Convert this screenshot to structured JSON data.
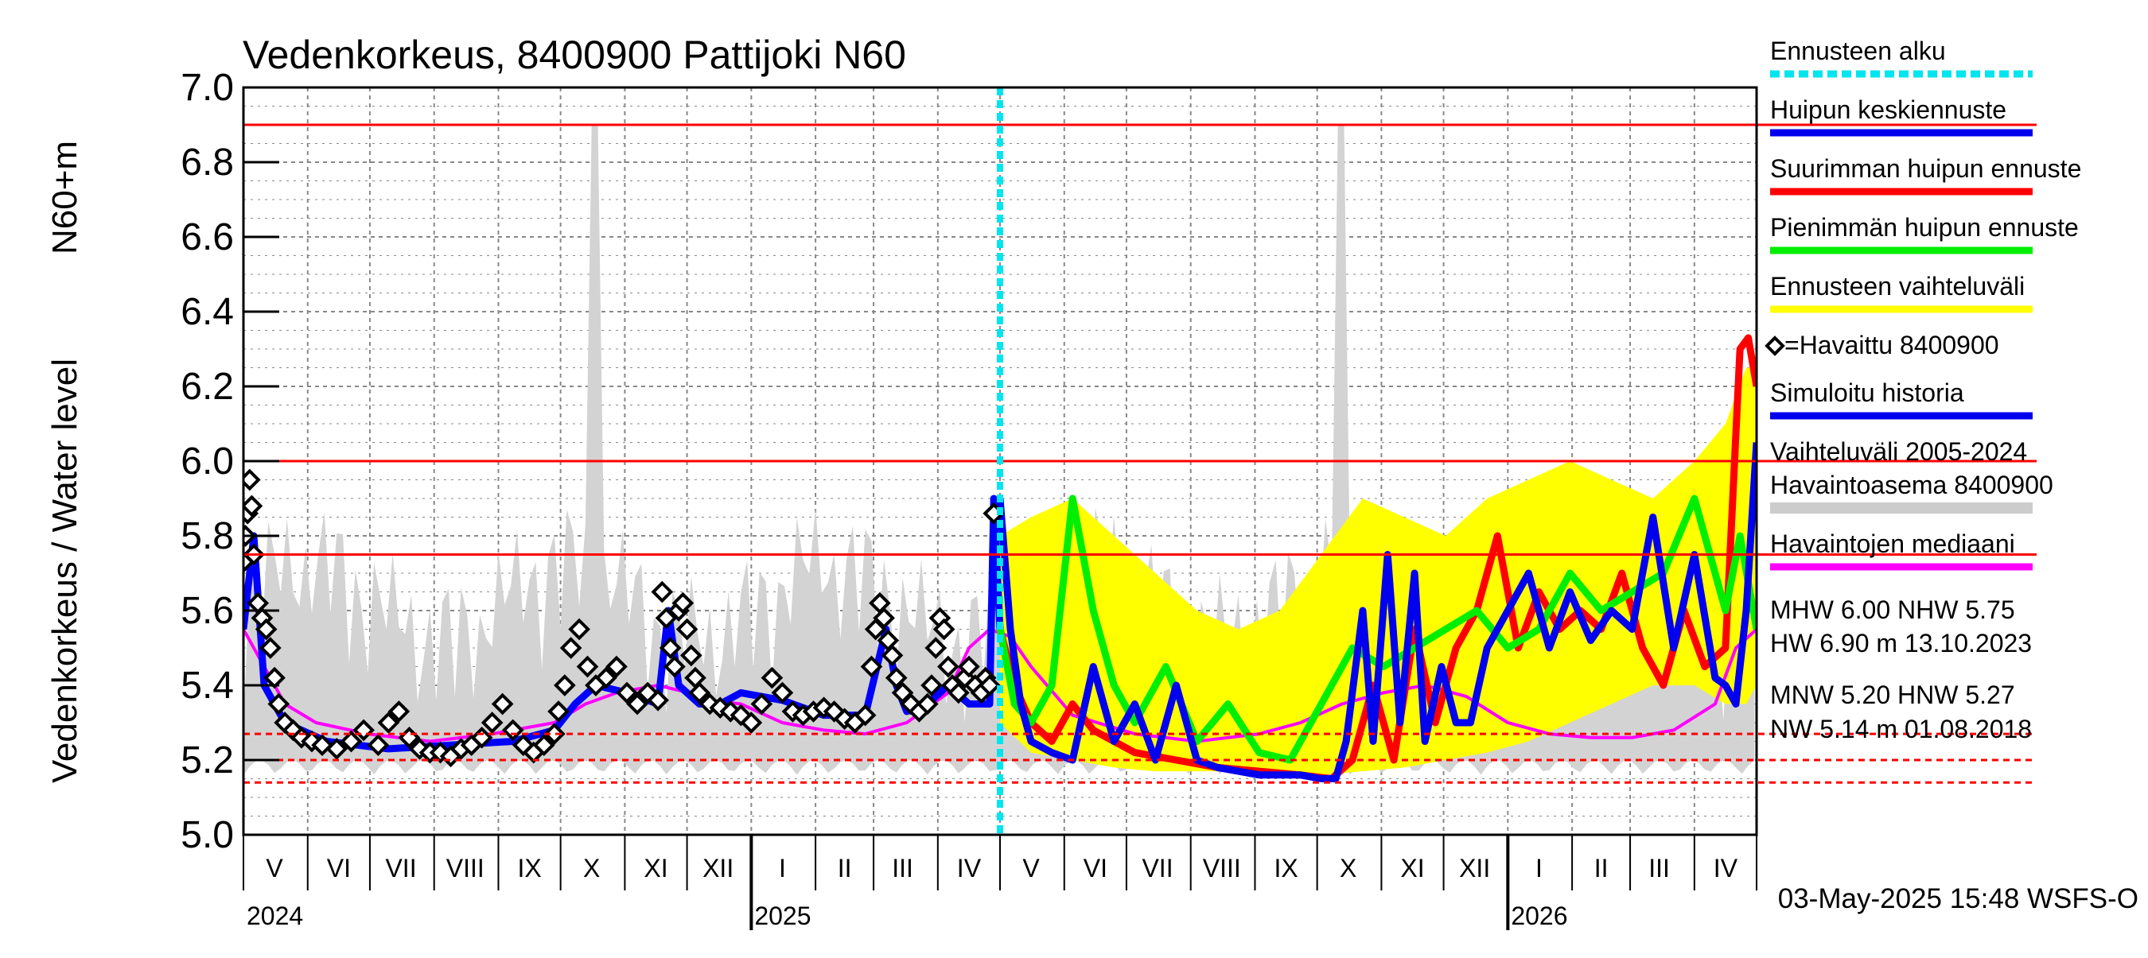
{
  "chart_data": {
    "type": "line",
    "title": "Vedenkorkeus, 8400900 Pattijoki N60",
    "ylabel": "Vedenkorkeus / Water level",
    "ylabel_unit": "N60+m",
    "ylim": [
      5.0,
      7.0
    ],
    "y_ticks": [
      "5.0",
      "5.2",
      "5.4",
      "5.6",
      "5.8",
      "6.0",
      "6.2",
      "6.4",
      "6.6",
      "6.8",
      "7.0"
    ],
    "x_range_days": [
      0,
      730
    ],
    "forecast_start_day": 365,
    "month_labels": [
      {
        "label": "V",
        "day": 15
      },
      {
        "label": "VI",
        "day": 46
      },
      {
        "label": "VII",
        "day": 76
      },
      {
        "label": "VIII",
        "day": 107
      },
      {
        "label": "IX",
        "day": 138
      },
      {
        "label": "X",
        "day": 168
      },
      {
        "label": "XI",
        "day": 199
      },
      {
        "label": "XII",
        "day": 229
      },
      {
        "label": "I",
        "day": 260
      },
      {
        "label": "II",
        "day": 290
      },
      {
        "label": "III",
        "day": 318
      },
      {
        "label": "IV",
        "day": 350
      },
      {
        "label": "V",
        "day": 380
      },
      {
        "label": "VI",
        "day": 411
      },
      {
        "label": "VII",
        "day": 441
      },
      {
        "label": "VIII",
        "day": 472
      },
      {
        "label": "IX",
        "day": 503
      },
      {
        "label": "X",
        "day": 533
      },
      {
        "label": "XI",
        "day": 564
      },
      {
        "label": "XII",
        "day": 594
      },
      {
        "label": "I",
        "day": 625
      },
      {
        "label": "II",
        "day": 655
      },
      {
        "label": "III",
        "day": 683
      },
      {
        "label": "IV",
        "day": 715
      }
    ],
    "month_boundaries": [
      0,
      31,
      61,
      92,
      123,
      153,
      184,
      214,
      245,
      276,
      304,
      335,
      365,
      396,
      426,
      457,
      488,
      518,
      549,
      579,
      610,
      641,
      669,
      700,
      730
    ],
    "year_boundaries": [
      245,
      610
    ],
    "year_labels": [
      {
        "label": "2024",
        "day": 0
      },
      {
        "label": "2025",
        "day": 245
      },
      {
        "label": "2026",
        "day": 610
      }
    ],
    "reference_lines": [
      {
        "name": "HW",
        "value": 6.9,
        "color": "#ff0000",
        "style": "solid"
      },
      {
        "name": "MHW",
        "value": 6.0,
        "color": "#ff0000",
        "style": "solid"
      },
      {
        "name": "NHW",
        "value": 5.75,
        "color": "#ff0000",
        "style": "solid"
      },
      {
        "name": "HNW",
        "value": 5.27,
        "color": "#ff0000",
        "style": "dashed"
      },
      {
        "name": "MNW",
        "value": 5.2,
        "color": "#ff0000",
        "style": "dashed"
      },
      {
        "name": "NW",
        "value": 5.14,
        "color": "#ff0000",
        "style": "dashed"
      }
    ],
    "series": [
      {
        "name": "Havaintojen mediaani",
        "color": "#ff00ff",
        "x": [
          0,
          10,
          20,
          35,
          60,
          90,
          120,
          150,
          165,
          180,
          200,
          215,
          225,
          240,
          260,
          280,
          300,
          320,
          340,
          350,
          360,
          370,
          380,
          400,
          430,
          460,
          490,
          510,
          530,
          550,
          570,
          590,
          610,
          630,
          650,
          670,
          690,
          710,
          720,
          730
        ],
        "values": [
          5.55,
          5.45,
          5.35,
          5.3,
          5.27,
          5.25,
          5.27,
          5.3,
          5.35,
          5.38,
          5.4,
          5.38,
          5.36,
          5.35,
          5.3,
          5.28,
          5.27,
          5.3,
          5.38,
          5.5,
          5.55,
          5.53,
          5.45,
          5.32,
          5.27,
          5.25,
          5.27,
          5.3,
          5.35,
          5.38,
          5.4,
          5.37,
          5.3,
          5.27,
          5.26,
          5.26,
          5.28,
          5.35,
          5.5,
          5.55
        ]
      },
      {
        "name": "Simuloitu historia",
        "color": "#0000ff",
        "x": [
          0,
          5,
          10,
          20,
          40,
          70,
          100,
          130,
          150,
          160,
          170,
          185,
          200,
          205,
          210,
          220,
          230,
          240,
          260,
          280,
          300,
          310,
          315,
          320,
          330,
          340,
          350,
          360,
          362,
          365
        ],
        "values": [
          5.55,
          5.8,
          5.4,
          5.3,
          5.25,
          5.23,
          5.24,
          5.25,
          5.28,
          5.35,
          5.4,
          5.38,
          5.35,
          5.6,
          5.4,
          5.35,
          5.35,
          5.38,
          5.36,
          5.32,
          5.32,
          5.55,
          5.4,
          5.33,
          5.35,
          5.4,
          5.35,
          5.35,
          5.9,
          5.55
        ]
      },
      {
        "name": "Ennusteen vaihteluväli",
        "color": "#ffff00",
        "x": [
          365,
          380,
          400,
          420,
          440,
          460,
          480,
          500,
          520,
          540,
          560,
          580,
          600,
          620,
          640,
          660,
          680,
          700,
          715,
          725,
          730
        ],
        "upper": [
          5.8,
          5.85,
          5.9,
          5.8,
          5.7,
          5.6,
          5.55,
          5.6,
          5.75,
          5.9,
          5.85,
          5.8,
          5.9,
          5.95,
          6.0,
          5.95,
          5.9,
          6.0,
          6.1,
          6.25,
          6.25
        ],
        "lower": [
          5.3,
          5.22,
          5.2,
          5.18,
          5.17,
          5.17,
          5.17,
          5.16,
          5.16,
          5.17,
          5.18,
          5.2,
          5.22,
          5.25,
          5.3,
          5.35,
          5.4,
          5.4,
          5.35,
          5.35,
          5.4
        ]
      },
      {
        "name": "Suurimman huipun ennuste",
        "color": "#ff0000",
        "x": [
          365,
          372,
          380,
          390,
          400,
          410,
          420,
          430,
          450,
          470,
          490,
          510,
          525,
          535,
          545,
          555,
          565,
          575,
          585,
          595,
          605,
          615,
          625,
          635,
          645,
          655,
          665,
          675,
          685,
          695,
          705,
          715,
          722,
          726,
          730
        ],
        "values": [
          5.55,
          5.4,
          5.3,
          5.25,
          5.35,
          5.28,
          5.25,
          5.22,
          5.2,
          5.18,
          5.17,
          5.16,
          5.15,
          5.2,
          5.4,
          5.2,
          5.55,
          5.3,
          5.5,
          5.6,
          5.8,
          5.5,
          5.65,
          5.55,
          5.6,
          5.55,
          5.7,
          5.5,
          5.4,
          5.6,
          5.45,
          5.5,
          6.3,
          6.33,
          6.2
        ]
      },
      {
        "name": "Pienimmän huipun ennuste",
        "color": "#00ee00",
        "x": [
          365,
          372,
          380,
          390,
          400,
          410,
          420,
          430,
          445,
          460,
          475,
          490,
          505,
          520,
          535,
          550,
          565,
          580,
          595,
          610,
          625,
          640,
          655,
          670,
          685,
          700,
          715,
          722,
          730
        ],
        "values": [
          5.55,
          5.35,
          5.3,
          5.4,
          5.9,
          5.6,
          5.4,
          5.3,
          5.45,
          5.25,
          5.35,
          5.22,
          5.2,
          5.35,
          5.5,
          5.45,
          5.5,
          5.55,
          5.6,
          5.5,
          5.55,
          5.7,
          5.6,
          5.65,
          5.7,
          5.9,
          5.6,
          5.8,
          5.55
        ]
      },
      {
        "name": "Huipun keskiennuste",
        "color": "#0000ee",
        "x": [
          365,
          370,
          375,
          380,
          390,
          400,
          410,
          420,
          430,
          440,
          450,
          460,
          470,
          480,
          490,
          500,
          510,
          520,
          527,
          532,
          540,
          545,
          552,
          558,
          565,
          570,
          578,
          585,
          592,
          600,
          610,
          620,
          630,
          640,
          650,
          660,
          670,
          680,
          690,
          700,
          710,
          715,
          720,
          725,
          730
        ],
        "values": [
          5.9,
          5.55,
          5.35,
          5.25,
          5.22,
          5.2,
          5.45,
          5.25,
          5.35,
          5.2,
          5.4,
          5.2,
          5.18,
          5.17,
          5.16,
          5.16,
          5.16,
          5.15,
          5.15,
          5.25,
          5.6,
          5.25,
          5.75,
          5.3,
          5.7,
          5.25,
          5.45,
          5.3,
          5.3,
          5.5,
          5.6,
          5.7,
          5.5,
          5.65,
          5.52,
          5.6,
          5.55,
          5.85,
          5.5,
          5.75,
          5.42,
          5.4,
          5.35,
          5.6,
          6.05
        ]
      }
    ],
    "observed": {
      "name": "Havaittu 8400900",
      "x": [
        0,
        1,
        2,
        3,
        4,
        5,
        7,
        9,
        11,
        13,
        15,
        17,
        20,
        24,
        28,
        33,
        38,
        45,
        52,
        58,
        65,
        70,
        75,
        80,
        85,
        90,
        95,
        100,
        105,
        110,
        115,
        120,
        125,
        130,
        135,
        140,
        145,
        150,
        152,
        155,
        158,
        162,
        166,
        170,
        175,
        180,
        185,
        190,
        195,
        200,
        202,
        204,
        206,
        208,
        210,
        212,
        214,
        216,
        218,
        220,
        225,
        230,
        235,
        240,
        245,
        250,
        255,
        260,
        265,
        270,
        275,
        280,
        285,
        290,
        295,
        300,
        303,
        305,
        307,
        309,
        311,
        313,
        315,
        318,
        322,
        326,
        330,
        332,
        334,
        336,
        338,
        340,
        342,
        345,
        348,
        350,
        353,
        356,
        358,
        360,
        362
      ],
      "values": [
        5.73,
        5.8,
        5.86,
        5.95,
        5.88,
        5.75,
        5.62,
        5.58,
        5.55,
        5.5,
        5.42,
        5.35,
        5.3,
        5.28,
        5.26,
        5.25,
        5.24,
        5.23,
        5.25,
        5.28,
        5.24,
        5.3,
        5.33,
        5.26,
        5.23,
        5.22,
        5.22,
        5.21,
        5.23,
        5.24,
        5.26,
        5.3,
        5.35,
        5.28,
        5.24,
        5.22,
        5.24,
        5.27,
        5.33,
        5.4,
        5.5,
        5.55,
        5.45,
        5.4,
        5.42,
        5.45,
        5.38,
        5.35,
        5.38,
        5.36,
        5.65,
        5.58,
        5.5,
        5.45,
        5.6,
        5.62,
        5.55,
        5.48,
        5.42,
        5.38,
        5.35,
        5.34,
        5.33,
        5.32,
        5.3,
        5.35,
        5.42,
        5.38,
        5.33,
        5.32,
        5.33,
        5.34,
        5.33,
        5.31,
        5.3,
        5.32,
        5.45,
        5.55,
        5.62,
        5.58,
        5.52,
        5.48,
        5.42,
        5.38,
        5.35,
        5.33,
        5.35,
        5.4,
        5.5,
        5.58,
        5.55,
        5.45,
        5.4,
        5.38,
        5.42,
        5.45,
        5.4,
        5.38,
        5.42,
        5.4,
        5.86
      ]
    },
    "legend": [
      {
        "label": "Ennusteen alku",
        "color": "#00e5ee",
        "style": "dashed"
      },
      {
        "label": "Huipun keskiennuste",
        "color": "#0000ee",
        "style": "solid"
      },
      {
        "label": "Suurimman huipun ennuste",
        "color": "#ff0000",
        "style": "solid"
      },
      {
        "label": "Pienimmän huipun ennuste",
        "color": "#00ee00",
        "style": "solid"
      },
      {
        "label": "Ennusteen vaihteluväli",
        "color": "#ffff00",
        "style": "solid"
      },
      {
        "label": "=Havaittu 8400900",
        "color": "#000000",
        "style": "marker"
      },
      {
        "label": "Simuloitu historia",
        "color": "#0000ee",
        "style": "solid"
      },
      {
        "label": "Vaihteluväli 2005-2024",
        "label2": " Havaintoasema 8400900",
        "color": "#cccccc",
        "style": "solid"
      },
      {
        "label": "Havaintojen mediaani",
        "color": "#ff00ff",
        "style": "solid"
      }
    ],
    "stats": {
      "mhw_line": "MHW    6.00 NHW    5.75",
      "hw_line": "HW    6.90 m 13.10.2023",
      "mnw_line": "MNW    5.20 HNW    5.27",
      "nw_line": "NW    5.14 m 01.08.2018"
    },
    "footer": "03-May-2025 15:48 WSFS-O"
  }
}
